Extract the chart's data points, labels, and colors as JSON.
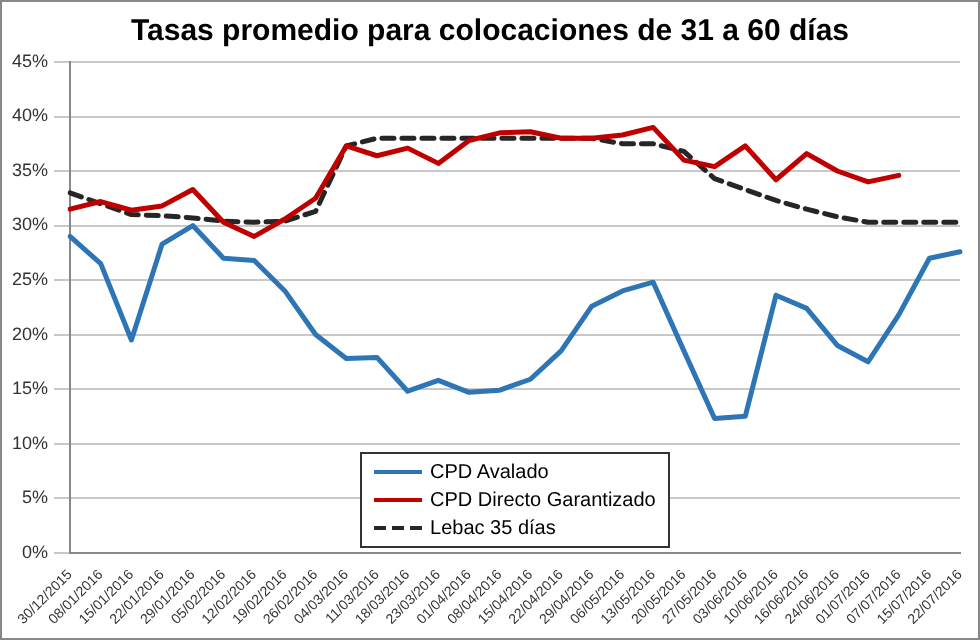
{
  "chart_data": {
    "type": "line",
    "title": "Tasas promedio para colocaciones de 31 a 60 días",
    "categories": [
      "30/12/2015",
      "08/01/2016",
      "15/01/2016",
      "22/01/2016",
      "29/01/2016",
      "05/02/2016",
      "12/02/2016",
      "19/02/2016",
      "26/02/2016",
      "04/03/2016",
      "11/03/2016",
      "18/03/2016",
      "23/03/2016",
      "01/04/2016",
      "08/04/2016",
      "15/04/2016",
      "22/04/2016",
      "29/04/2016",
      "06/05/2016",
      "13/05/2016",
      "20/05/2016",
      "27/05/2016",
      "03/06/2016",
      "10/06/2016",
      "16/06/2016",
      "24/06/2016",
      "01/07/2016",
      "07/07/2016",
      "15/07/2016",
      "22/07/2016"
    ],
    "series": [
      {
        "name": "CPD Avalado",
        "color": "#2e75b6",
        "line_style": "solid",
        "values": [
          29,
          26.5,
          19.5,
          28.3,
          30,
          27,
          26.8,
          24,
          20,
          17.8,
          17.9,
          14.8,
          15.8,
          14.7,
          14.9,
          15.9,
          18.5,
          22.6,
          24,
          24.8,
          18.5,
          12.3,
          12.5,
          23.6,
          22.4,
          19,
          17.5,
          21.8,
          27,
          27.6
        ]
      },
      {
        "name": "CPD Directo Garantizado",
        "color": "#c00000",
        "line_style": "solid",
        "values": [
          31.5,
          32.2,
          31.4,
          31.8,
          33.3,
          30.3,
          29,
          30.6,
          32.5,
          37.3,
          36.4,
          37.1,
          35.7,
          37.8,
          38.5,
          38.6,
          38,
          38,
          38.3,
          39,
          36,
          35.4,
          37.3,
          34.2,
          36.6,
          35,
          34,
          34.6,
          null,
          null
        ]
      },
      {
        "name": "Lebac 35 días",
        "color": "#262626",
        "line_style": "dashed",
        "values": [
          33,
          32,
          31,
          30.9,
          30.7,
          30.4,
          30.3,
          30.4,
          31.3,
          37.3,
          38,
          38,
          38,
          38,
          38,
          38,
          38,
          38,
          37.5,
          37.5,
          36.8,
          34.3,
          33.3,
          32.3,
          31.5,
          30.8,
          30.3,
          30.3,
          30.3,
          30.3
        ]
      }
    ],
    "ylim": [
      0,
      45
    ],
    "yticks": [
      {
        "value": 0,
        "label": "0%"
      },
      {
        "value": 5,
        "label": "5%"
      },
      {
        "value": 10,
        "label": "10%"
      },
      {
        "value": 15,
        "label": "15%"
      },
      {
        "value": 20,
        "label": "20%"
      },
      {
        "value": 25,
        "label": "25%"
      },
      {
        "value": 30,
        "label": "30%"
      },
      {
        "value": 35,
        "label": "35%"
      },
      {
        "value": 40,
        "label": "40%"
      },
      {
        "value": 45,
        "label": "45%"
      }
    ],
    "grid": "y",
    "legend": "bottom",
    "marker": "none"
  }
}
